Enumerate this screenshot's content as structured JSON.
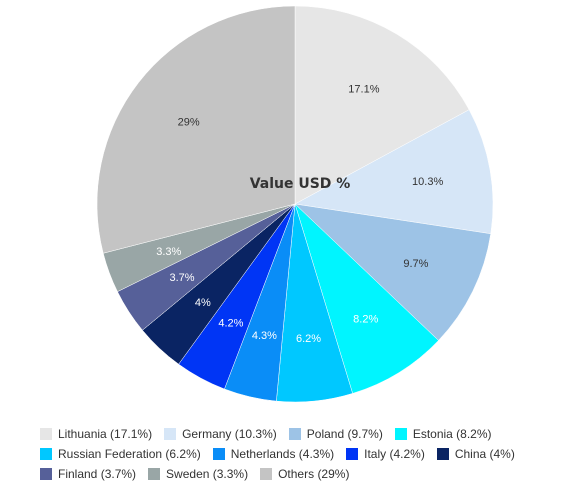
{
  "chart_data": {
    "type": "pie",
    "title": "Value USD %",
    "slices": [
      {
        "name": "Lithuania",
        "value": 17.1,
        "label": "17.1%",
        "legend": "Lithuania (17.1%)",
        "color": "#e6e6e6",
        "label_color": "#333333"
      },
      {
        "name": "Germany",
        "value": 10.3,
        "label": "10.3%",
        "legend": "Germany (10.3%)",
        "color": "#d6e6f7",
        "label_color": "#333333"
      },
      {
        "name": "Poland",
        "value": 9.7,
        "label": "9.7%",
        "legend": "Poland (9.7%)",
        "color": "#9dc3e6",
        "label_color": "#333333"
      },
      {
        "name": "Estonia",
        "value": 8.2,
        "label": "8.2%",
        "legend": "Estonia (8.2%)",
        "color": "#00f5ff",
        "label_color": "#ffffff"
      },
      {
        "name": "Russian Federation",
        "value": 6.2,
        "label": "6.2%",
        "legend": "Russian Federation (6.2%)",
        "color": "#00c8ff",
        "label_color": "#ffffff"
      },
      {
        "name": "Netherlands",
        "value": 4.3,
        "label": "4.3%",
        "legend": "Netherlands (4.3%)",
        "color": "#0a8df7",
        "label_color": "#ffffff"
      },
      {
        "name": "Italy",
        "value": 4.2,
        "label": "4.2%",
        "legend": "Italy (4.2%)",
        "color": "#0035f5",
        "label_color": "#ffffff"
      },
      {
        "name": "China",
        "value": 4,
        "label": "4%",
        "legend": "China (4%)",
        "color": "#0a2463",
        "label_color": "#ffffff"
      },
      {
        "name": "Finland",
        "value": 3.7,
        "label": "3.7%",
        "legend": "Finland (3.7%)",
        "color": "#566099",
        "label_color": "#ffffff"
      },
      {
        "name": "Sweden",
        "value": 3.3,
        "label": "3.3%",
        "legend": "Sweden (3.3%)",
        "color": "#99a6a6",
        "label_color": "#ffffff"
      },
      {
        "name": "Others",
        "value": 29,
        "label": "29%",
        "legend": "Others (29%)",
        "color": "#c4c4c4",
        "label_color": "#333333"
      }
    ],
    "legend_position": "bottom"
  }
}
